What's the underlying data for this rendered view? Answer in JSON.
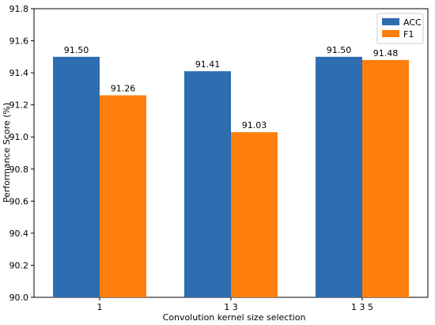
{
  "chart_data": {
    "type": "bar",
    "categories": [
      "1",
      "1 3",
      "1 3 5"
    ],
    "series": [
      {
        "name": "ACC",
        "values": [
          91.5,
          91.41,
          91.5
        ],
        "labels": [
          "91.50",
          "91.41",
          "91.50"
        ],
        "color": "#2d6db0"
      },
      {
        "name": "F1",
        "values": [
          91.26,
          91.03,
          91.48
        ],
        "labels": [
          "91.26",
          "91.03",
          "91.48"
        ],
        "color": "#ff7f0e"
      }
    ],
    "xlabel": "Convolution kernel size selection",
    "ylabel": "Performance Score (%)",
    "ylim": [
      90.0,
      91.8
    ],
    "yticks": [
      "90.0",
      "90.2",
      "90.4",
      "90.6",
      "90.8",
      "91.0",
      "91.2",
      "91.4",
      "91.6",
      "91.8"
    ],
    "legend_position": "top-right",
    "grid": false
  }
}
